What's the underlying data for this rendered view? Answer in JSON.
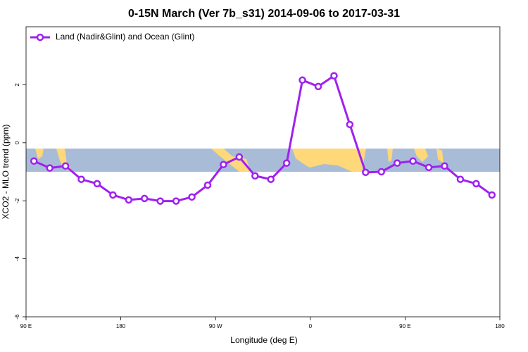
{
  "chart_data": {
    "type": "line",
    "title": "0-15N March (Ver 7b_s31)   2014-09-06 to 2017-03-31",
    "x_label": "Longitude (deg E)",
    "y_label": "XCO2 - MLO trend (ppm)",
    "x": [
      97.5,
      112.5,
      127.5,
      142.5,
      157.5,
      172.5,
      187.5,
      202.5,
      217.5,
      232.5,
      247.5,
      262.5,
      277.5,
      292.5,
      307.5,
      322.5,
      337.5,
      352.5,
      367.5,
      382.5,
      397.5,
      412.5,
      427.5,
      442.5,
      457.5,
      472.5,
      487.5,
      502.5,
      517.5,
      532.5
    ],
    "series": [
      {
        "name": "Land (Nadir&Glint) and Ocean (Glint)",
        "color": "#a020f0",
        "values": [
          -0.63,
          -0.87,
          -0.8,
          -1.26,
          -1.41,
          -1.8,
          -1.97,
          -1.92,
          -2.01,
          -2.01,
          -1.87,
          -1.46,
          -0.75,
          -0.49,
          -1.14,
          -1.26,
          -0.7,
          2.16,
          1.94,
          2.31,
          0.63,
          -1.02,
          -1.0,
          -0.7,
          -0.63,
          -0.85,
          -0.8,
          -1.26,
          -1.41,
          -1.8
        ]
      }
    ],
    "xlim": [
      90,
      540
    ],
    "xticks": [
      {
        "value": 90,
        "label": "90 E"
      },
      180,
      {
        "value": 270,
        "label": "90 W"
      },
      {
        "value": 360,
        "label": "0"
      },
      {
        "value": 450,
        "label": "90 E"
      },
      {
        "value": 540,
        "label": "180"
      }
    ],
    "ylim": [
      -6,
      4
    ],
    "yticks": [
      -6,
      -4,
      -2,
      0,
      2
    ],
    "legend": "top-left"
  }
}
